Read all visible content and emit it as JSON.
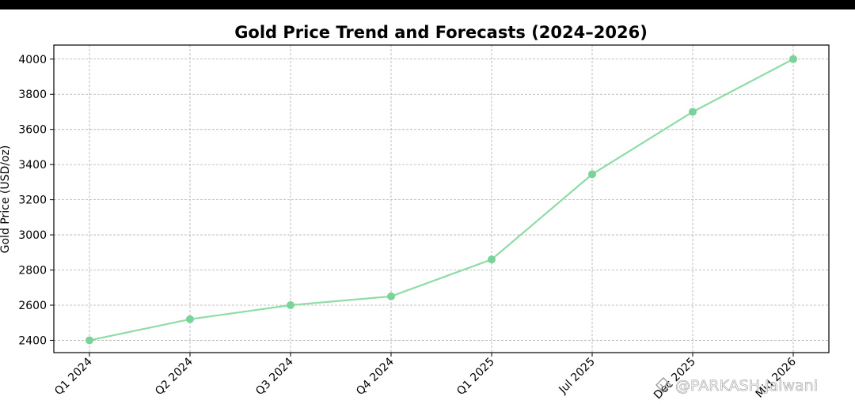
{
  "chart_data": {
    "type": "line",
    "title": "Gold Price Trend and Forecasts (2024–2026)",
    "xlabel": "",
    "ylabel": "Gold Price (USD/oz)",
    "categories": [
      "Q1 2024",
      "Q2 2024",
      "Q3 2024",
      "Q4 2024",
      "Q1 2025",
      "Jul 2025",
      "Dec 2025",
      "Mid 2026"
    ],
    "series": [
      {
        "values": [
          2400,
          2520,
          2600,
          2650,
          2860,
          3345,
          3700,
          4000
        ]
      }
    ],
    "ylim": [
      2330,
      4080
    ],
    "yticks": [
      "2400",
      "2600",
      "2800",
      "3000",
      "3200",
      "3400",
      "3600",
      "3800",
      "4000"
    ],
    "grid": true,
    "line_color": "#8fdca6",
    "marker_color": "#7cd39a"
  },
  "watermark": {
    "text": "@PARKASH Jalwani",
    "icon": "share-diamond-icon"
  }
}
